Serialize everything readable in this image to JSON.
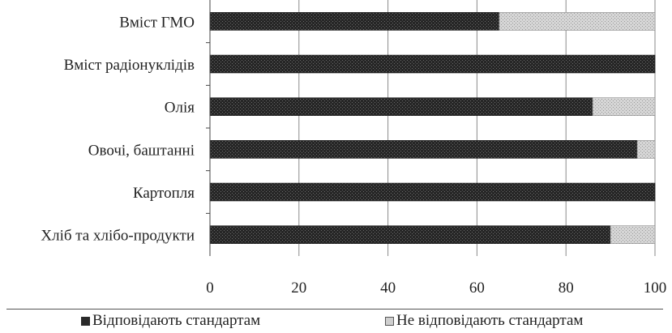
{
  "chart_data": {
    "type": "bar",
    "orientation": "horizontal",
    "stacked": true,
    "categories": [
      "Вміст ГМО",
      "Вміст радіонуклідів",
      "Олія",
      "Овочі, баштанні",
      "Картопля",
      "Хліб та хлібо-продукти"
    ],
    "series": [
      {
        "name": "Відповідають стандартам",
        "values": [
          65,
          100,
          86,
          96,
          100,
          90
        ],
        "color": "#2a2a2a"
      },
      {
        "name": "Не відповідають стандартам",
        "values": [
          35,
          0,
          14,
          4,
          0,
          10
        ],
        "color": "#cfcfcf"
      }
    ],
    "xlim": [
      0,
      100
    ],
    "xticks": [
      "0",
      "20",
      "40",
      "60",
      "80",
      "100"
    ],
    "xlabel": "",
    "ylabel": "",
    "title": "",
    "grid": "vertical",
    "legend_position": "bottom"
  }
}
